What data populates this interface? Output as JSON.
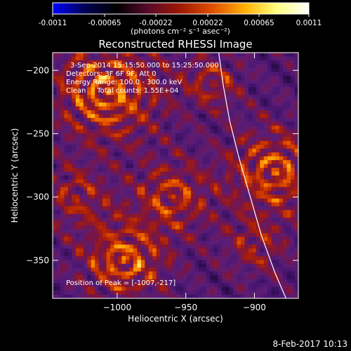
{
  "colorbar": {
    "ticks": [
      "-0.0011",
      "-0.00065",
      "-0.00022",
      "0.00022",
      "0.00065",
      "0.0011"
    ],
    "units": "(photons cm⁻² s⁻¹ asec⁻²)",
    "colormap": [
      "#0000ff",
      "#000055",
      "#000000",
      "#5a0a2a",
      "#a01800",
      "#e05000",
      "#ffb000",
      "#ffff80",
      "#ffffff"
    ]
  },
  "chart_data": {
    "type": "heatmap",
    "title": "Reconstructed RHESSI Image",
    "xlabel": "Heliocentric X (arcsec)",
    "ylabel": "Heliocentric Y (arcsec)",
    "xlim": [
      -1047,
      -868
    ],
    "ylim": [
      -380,
      -186
    ],
    "xticks": [
      -1000,
      -950,
      -900
    ],
    "xtick_labels": [
      "−1000",
      "−950",
      "−900"
    ],
    "yticks": [
      -200,
      -250,
      -300,
      -350
    ],
    "ytick_labels": [
      "−200",
      "−250",
      "−300",
      "−350"
    ],
    "limb_curve": [
      [
        -926,
        -186
      ],
      [
        -923,
        -210
      ],
      [
        -918,
        -240
      ],
      [
        -911,
        -270
      ],
      [
        -903,
        -300
      ],
      [
        -895,
        -330
      ],
      [
        -885,
        -360
      ],
      [
        -877,
        -380
      ]
    ],
    "annotations": [
      "3-Sep-2014 15:15:50.000 to 15:25:50.000",
      "Detectors: 3F 6F 9F, Att 0",
      "Energy Range: 100.0 - 300.0 keV",
      "Clean     Total counts: 1.55E+04",
      "Position of Peak = [-1007,-217]"
    ],
    "peak": [
      -1007,
      -217
    ]
  },
  "footer": {
    "timestamp": "8-Feb-2017 10:13"
  }
}
